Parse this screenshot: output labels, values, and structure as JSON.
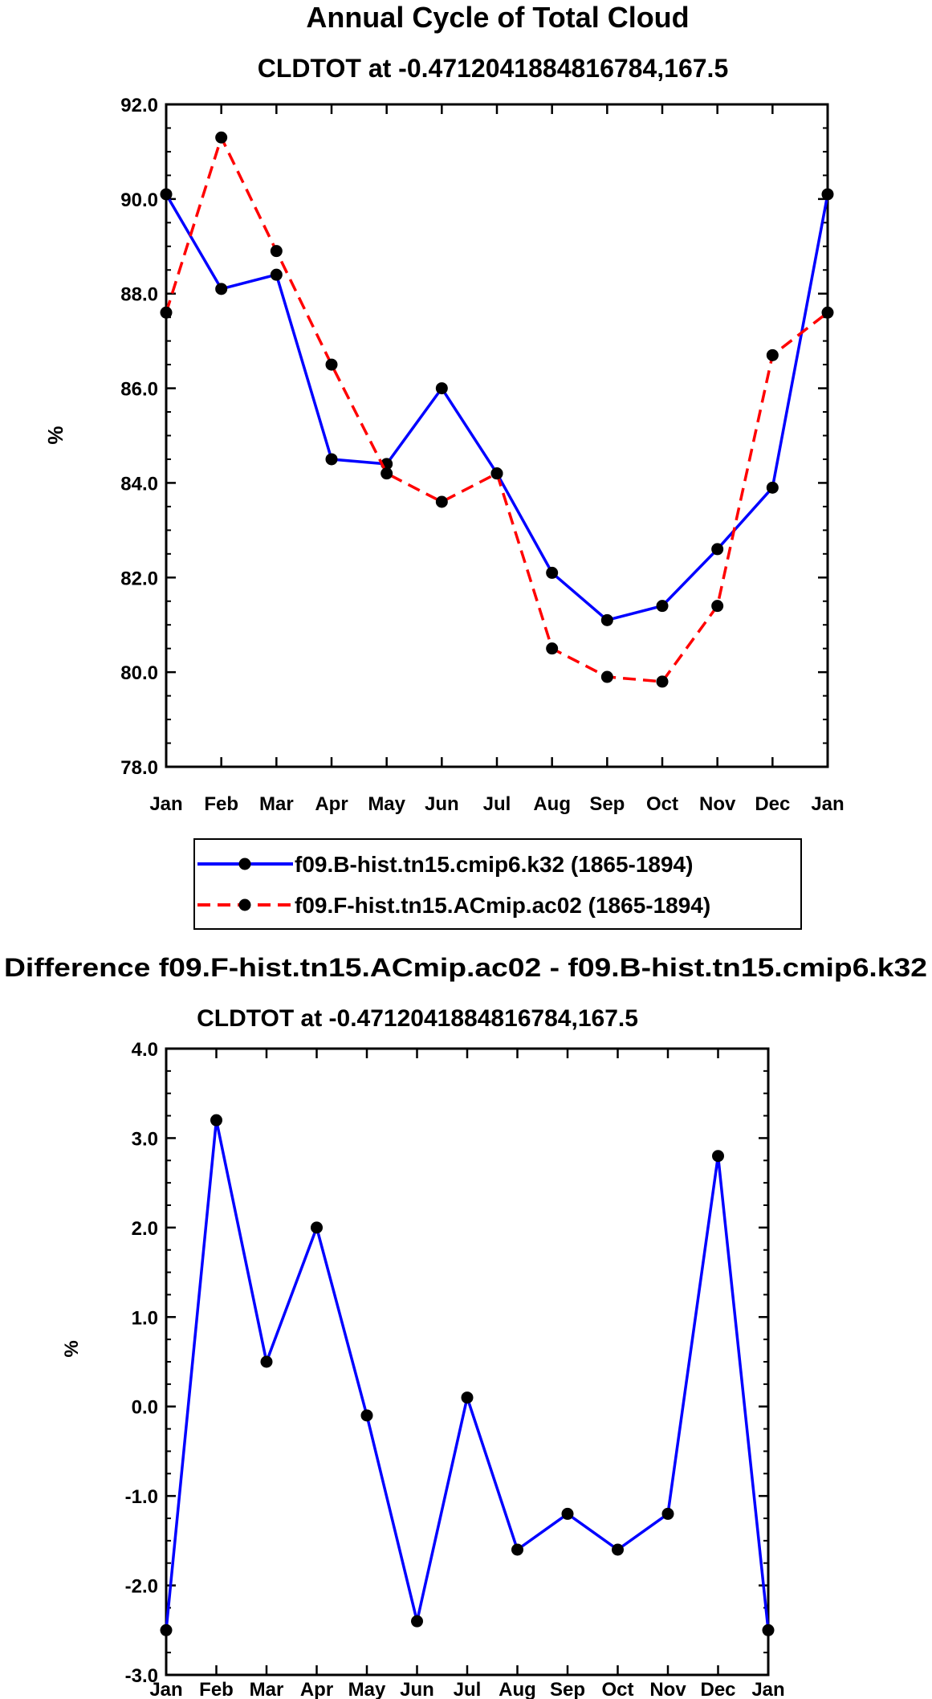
{
  "chart_data": [
    {
      "type": "line",
      "title": "Annual Cycle of Total Cloud",
      "subtitle": "CLDTOT at -0.4712041884816784,167.5",
      "xlabel": "",
      "ylabel": "%",
      "categories": [
        "Jan",
        "Feb",
        "Mar",
        "Apr",
        "May",
        "Jun",
        "Jul",
        "Aug",
        "Sep",
        "Oct",
        "Nov",
        "Dec",
        "Jan"
      ],
      "ylim": [
        78.0,
        92.0
      ],
      "yticks": [
        "78.0",
        "80.0",
        "82.0",
        "84.0",
        "86.0",
        "88.0",
        "90.0",
        "92.0"
      ],
      "grid": false,
      "legend_position": "bottom",
      "series": [
        {
          "name": "f09.B-hist.tn15.cmip6.k32 (1865-1894)",
          "color": "#0000ff",
          "line_style": "solid",
          "values": [
            90.1,
            88.1,
            88.4,
            84.5,
            84.4,
            86.0,
            84.2,
            82.1,
            81.1,
            81.4,
            82.6,
            83.9,
            90.1
          ]
        },
        {
          "name": "f09.F-hist.tn15.ACmip.ac02 (1865-1894)",
          "color": "#ff0000",
          "line_style": "dashed",
          "values": [
            87.6,
            91.3,
            88.9,
            86.5,
            84.2,
            83.6,
            84.2,
            80.5,
            79.9,
            79.8,
            81.4,
            86.7,
            87.6
          ]
        }
      ]
    },
    {
      "type": "line",
      "title": "Difference f09.F-hist.tn15.ACmip.ac02 - f09.B-hist.tn15.cmip6.k32",
      "subtitle": "CLDTOT at -0.4712041884816784,167.5",
      "xlabel": "",
      "ylabel": "%",
      "categories": [
        "Jan",
        "Feb",
        "Mar",
        "Apr",
        "May",
        "Jun",
        "Jul",
        "Aug",
        "Sep",
        "Oct",
        "Nov",
        "Dec",
        "Jan"
      ],
      "ylim": [
        -3.0,
        4.0
      ],
      "yticks": [
        "-3.0",
        "-2.0",
        "-1.0",
        "0.0",
        "1.0",
        "2.0",
        "3.0",
        "4.0"
      ],
      "grid": false,
      "series": [
        {
          "name": "Difference",
          "color": "#0000ff",
          "line_style": "solid",
          "values": [
            -2.5,
            3.2,
            0.5,
            2.0,
            -0.1,
            -2.4,
            0.1,
            -1.6,
            -1.2,
            -1.6,
            -1.2,
            2.8,
            -2.5
          ]
        }
      ]
    }
  ]
}
